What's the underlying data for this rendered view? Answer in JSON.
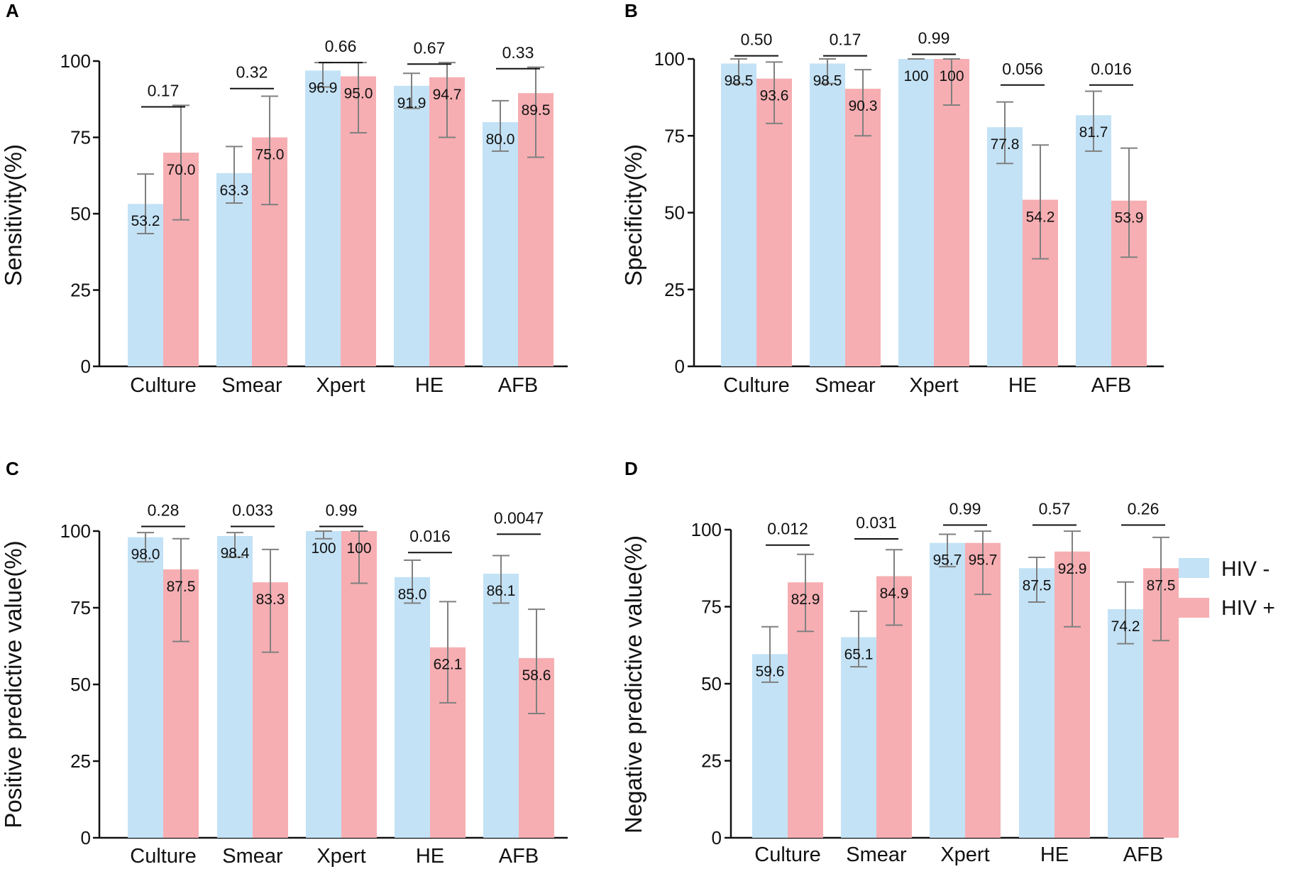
{
  "colors": {
    "hiv_neg": "#c3e2f6",
    "hiv_pos": "#f6aeb2",
    "error_bar": "#808080",
    "axis": "#111111"
  },
  "legend": {
    "items": [
      {
        "label": "HIV -",
        "color": "#c3e2f6"
      },
      {
        "label": "HIV +",
        "color": "#f6aeb2"
      }
    ]
  },
  "chart_data": [
    {
      "type": "bar",
      "panel": "A",
      "ylabel": "Sensitivity(%)",
      "xlabel": "",
      "ylim": [
        0,
        100
      ],
      "yticks": [
        0,
        25,
        50,
        75,
        100
      ],
      "categories": [
        "Culture",
        "Smear",
        "Xpert",
        "HE",
        "AFB"
      ],
      "series": [
        {
          "name": "HIV -",
          "values": [
            53.2,
            63.3,
            96.9,
            91.9,
            80.0
          ],
          "labels": [
            "53.2",
            "63.3",
            "96.9",
            "91.9",
            "80.0"
          ],
          "ci_low": [
            43.5,
            53.5,
            91.5,
            84.5,
            70.5
          ],
          "ci_high": [
            63.0,
            72.0,
            99.5,
            96.0,
            87.0
          ]
        },
        {
          "name": "HIV +",
          "values": [
            70.0,
            75.0,
            95.0,
            94.7,
            89.5
          ],
          "labels": [
            "70.0",
            "75.0",
            "95.0",
            "94.7",
            "89.5"
          ],
          "ci_low": [
            48.0,
            53.0,
            76.5,
            75.0,
            68.5
          ],
          "ci_high": [
            85.5,
            88.5,
            99.5,
            99.5,
            98.0
          ]
        }
      ],
      "p_values": [
        "0.17",
        "0.32",
        "0.66",
        "0.67",
        "0.33"
      ],
      "p_bracket": [
        85.0,
        91.0,
        99.5,
        99.0,
        97.5
      ]
    },
    {
      "type": "bar",
      "panel": "B",
      "ylabel": "Specificity(%)",
      "xlabel": "",
      "ylim": [
        0,
        100
      ],
      "yticks": [
        0,
        25,
        50,
        75,
        100
      ],
      "categories": [
        "Culture",
        "Smear",
        "Xpert",
        "HE",
        "AFB"
      ],
      "series": [
        {
          "name": "HIV -",
          "values": [
            98.5,
            98.5,
            100,
            77.8,
            81.7
          ],
          "labels": [
            "98.5",
            "98.5",
            "100",
            "77.8",
            "81.7"
          ],
          "ci_low": [
            92.0,
            92.0,
            100,
            66.0,
            70.0
          ],
          "ci_high": [
            100,
            100,
            100,
            86.0,
            89.5
          ]
        },
        {
          "name": "HIV +",
          "values": [
            93.6,
            90.3,
            100,
            54.2,
            53.9
          ],
          "labels": [
            "93.6",
            "90.3",
            "100",
            "54.2",
            "53.9"
          ],
          "ci_low": [
            79.0,
            75.0,
            85.0,
            35.0,
            35.5
          ],
          "ci_high": [
            99.0,
            96.5,
            100,
            72.0,
            71.0
          ]
        }
      ],
      "p_values": [
        "0.50",
        "0.17",
        "0.99",
        "0.056",
        "0.016"
      ],
      "p_bracket": [
        101.0,
        101.0,
        101.5,
        91.5,
        91.5
      ]
    },
    {
      "type": "bar",
      "panel": "C",
      "ylabel": "Positive predictive value(%)",
      "xlabel": "",
      "ylim": [
        0,
        100
      ],
      "yticks": [
        0,
        25,
        50,
        75,
        100
      ],
      "categories": [
        "Culture",
        "Smear",
        "Xpert",
        "HE",
        "AFB"
      ],
      "series": [
        {
          "name": "HIV -",
          "values": [
            98.0,
            98.4,
            100,
            85.0,
            86.1
          ],
          "labels": [
            "98.0",
            "98.4",
            "100",
            "85.0",
            "86.1"
          ],
          "ci_low": [
            90.0,
            91.5,
            97.5,
            76.5,
            76.5
          ],
          "ci_high": [
            99.5,
            99.5,
            100,
            90.5,
            92.0
          ]
        },
        {
          "name": "HIV +",
          "values": [
            87.5,
            83.3,
            100,
            62.1,
            58.6
          ],
          "labels": [
            "87.5",
            "83.3",
            "100",
            "62.1",
            "58.6"
          ],
          "ci_low": [
            64.0,
            60.5,
            83.0,
            44.0,
            40.5
          ],
          "ci_high": [
            97.5,
            94.0,
            100,
            77.0,
            74.5
          ]
        }
      ],
      "p_values": [
        "0.28",
        "0.033",
        "0.99",
        "0.016",
        "0.0047"
      ],
      "p_bracket": [
        101.5,
        101.5,
        101.5,
        93.0,
        99.0
      ]
    },
    {
      "type": "bar",
      "panel": "D",
      "ylabel": "Negative predictive value(%)",
      "xlabel": "",
      "ylim": [
        0,
        100
      ],
      "yticks": [
        0,
        25,
        50,
        75,
        100
      ],
      "categories": [
        "Culture",
        "Smear",
        "Xpert",
        "HE",
        "AFB"
      ],
      "series": [
        {
          "name": "HIV -",
          "values": [
            59.6,
            65.1,
            95.7,
            87.5,
            74.2
          ],
          "labels": [
            "59.6",
            "65.1",
            "95.7",
            "87.5",
            "74.2"
          ],
          "ci_low": [
            50.5,
            55.5,
            88.0,
            76.5,
            63.0
          ],
          "ci_high": [
            68.5,
            73.5,
            98.5,
            91.0,
            83.0
          ]
        },
        {
          "name": "HIV +",
          "values": [
            82.9,
            84.9,
            95.7,
            92.9,
            87.5
          ],
          "labels": [
            "82.9",
            "84.9",
            "95.7",
            "92.9",
            "87.5"
          ],
          "ci_low": [
            67.0,
            69.0,
            79.0,
            68.5,
            64.0
          ],
          "ci_high": [
            92.0,
            93.5,
            99.5,
            99.5,
            97.5
          ]
        }
      ],
      "p_values": [
        "0.012",
        "0.031",
        "0.99",
        "0.57",
        "0.26"
      ],
      "p_bracket": [
        95.0,
        97.0,
        101.5,
        101.5,
        101.5
      ]
    }
  ]
}
